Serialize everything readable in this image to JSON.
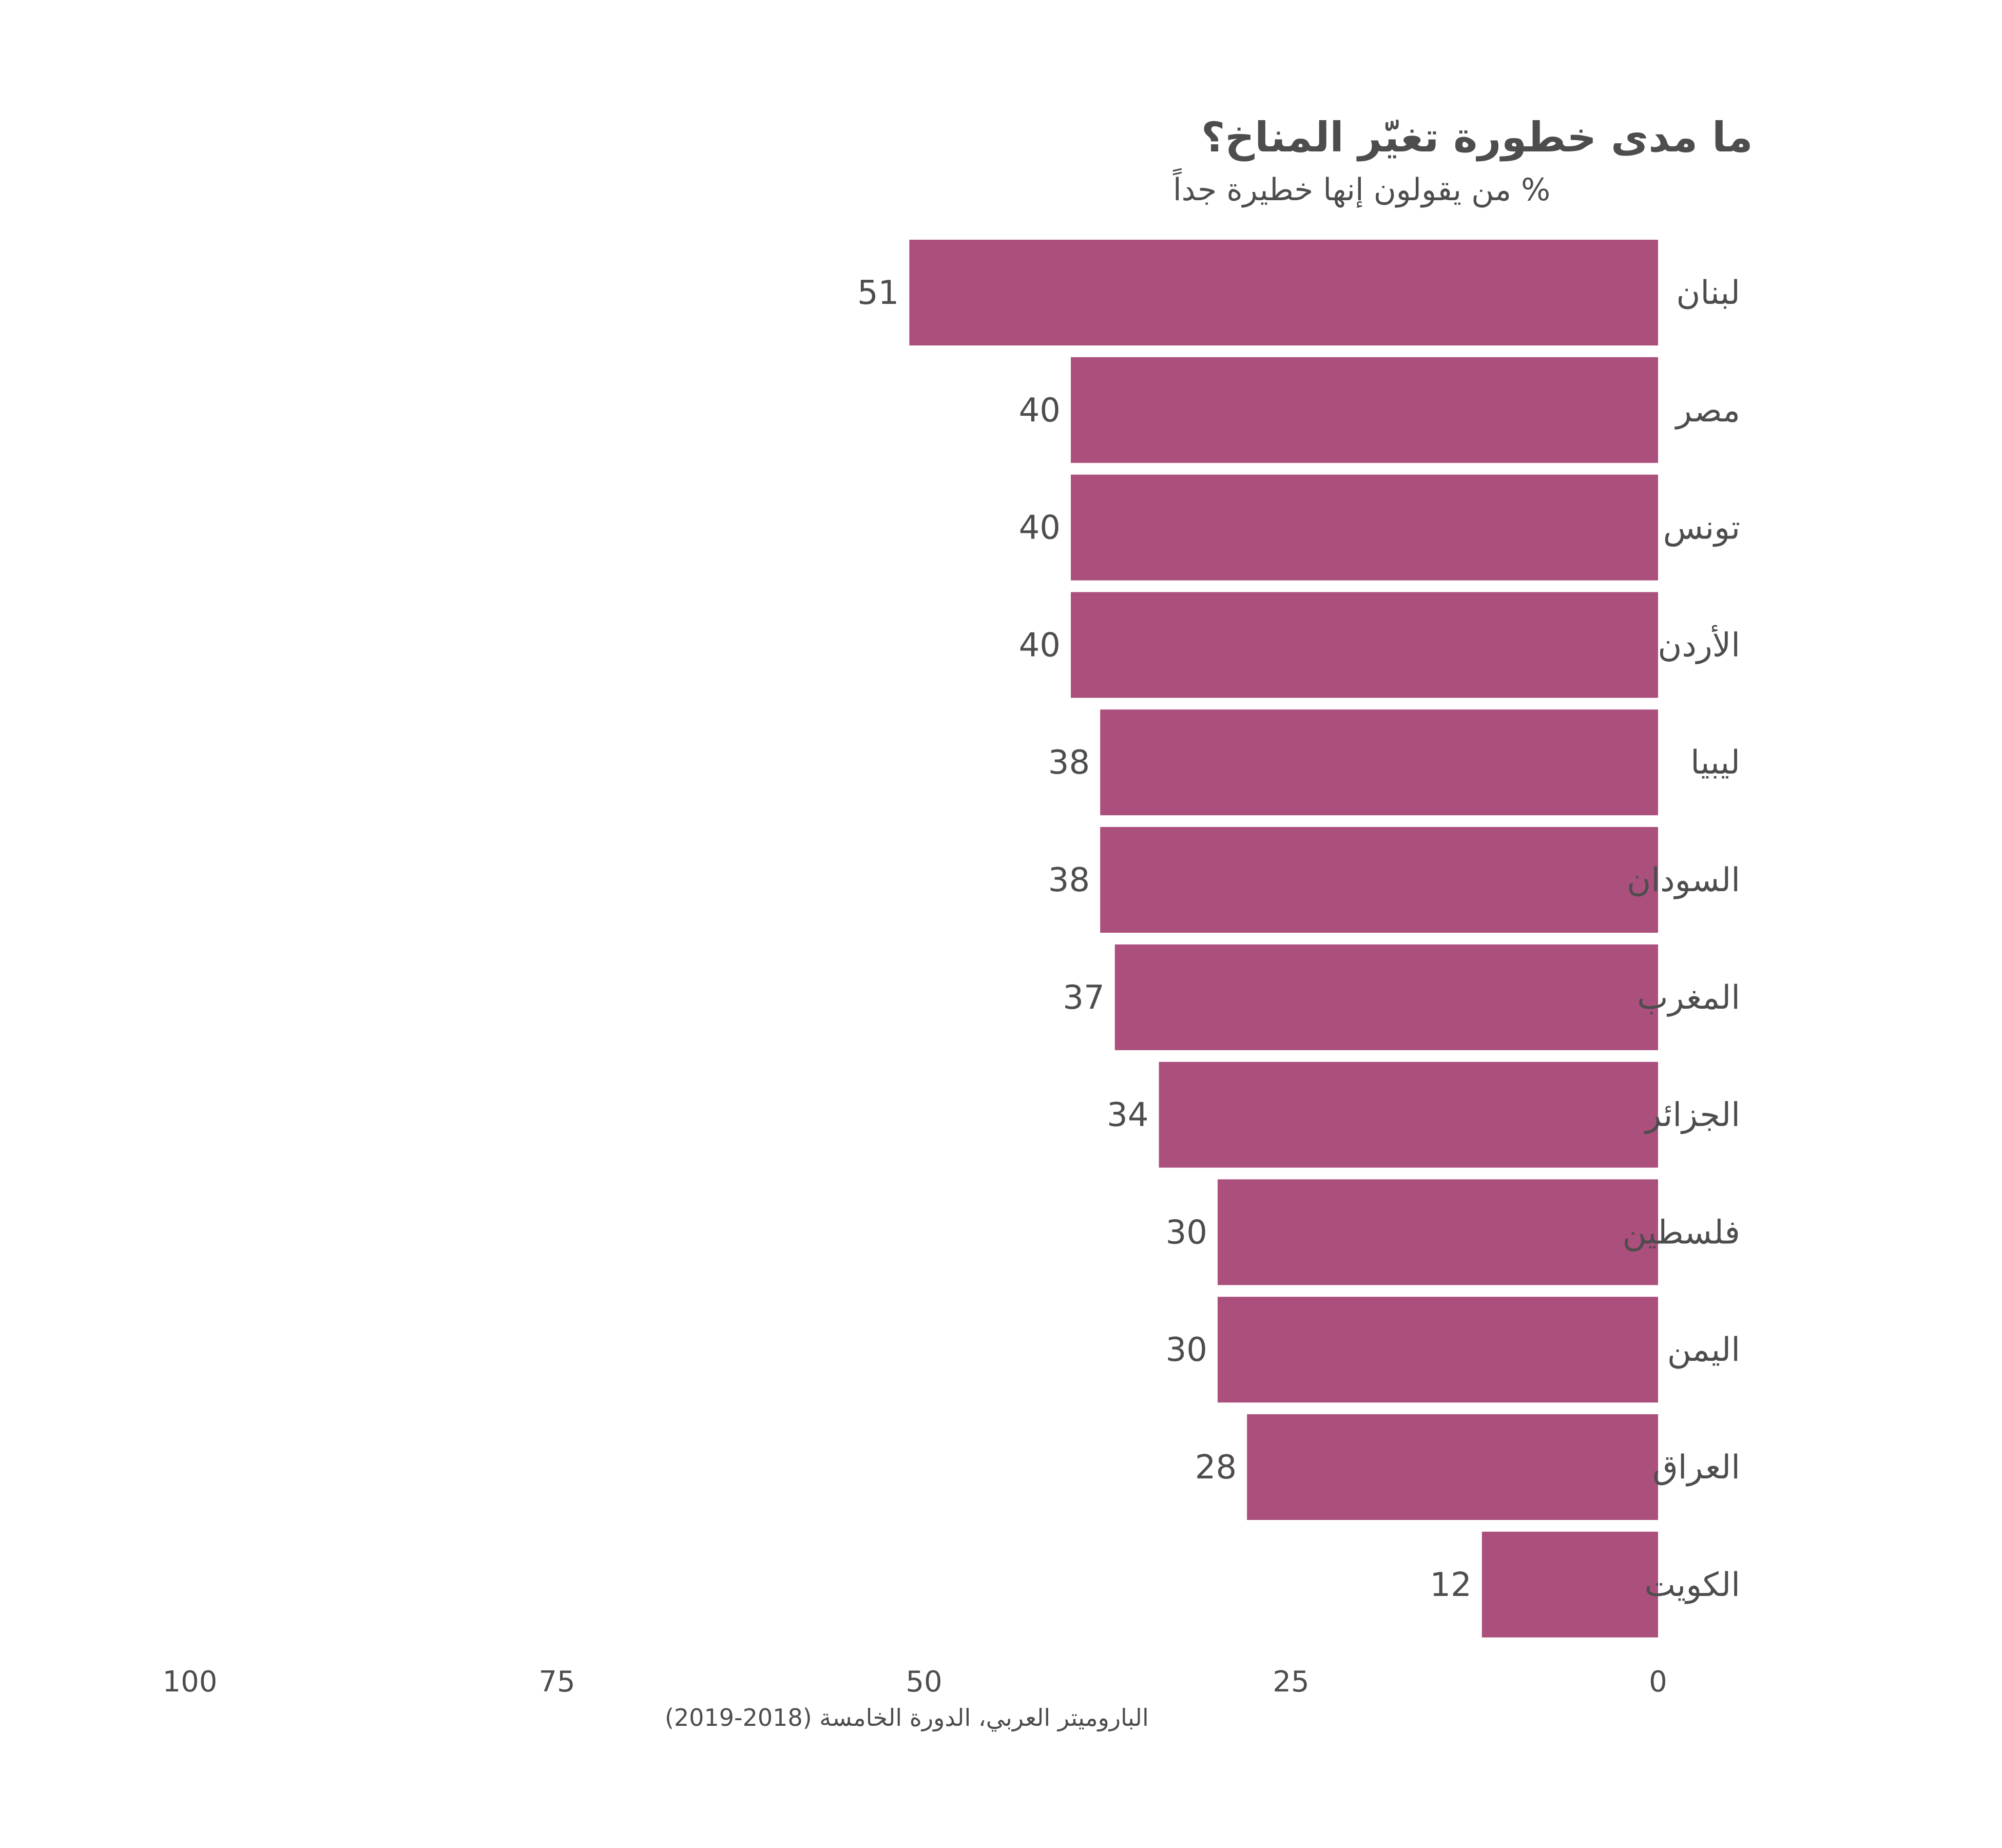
{
  "chart_data": {
    "type": "bar",
    "orientation": "horizontal",
    "direction": "right-to-left",
    "title": "ما مدى خطورة تغيّر المناخ؟",
    "subtitle": "% من يقولون إنها خطيرة جداً",
    "categories": [
      "لبنان",
      "مصر",
      "تونس",
      "الأردن",
      "ليبيا",
      "السودان",
      "المغرب",
      "الجزائر",
      "فلسطين",
      "اليمن",
      "العراق",
      "الكويت"
    ],
    "values": [
      51,
      40,
      40,
      40,
      38,
      38,
      37,
      34,
      30,
      30,
      28,
      12
    ],
    "xlim": [
      0,
      100
    ],
    "xticks": [
      100,
      75,
      50,
      25,
      0
    ],
    "grid": false,
    "bar_color": "#ab4f7c",
    "caption": "الباروميتر العربي، الدورة الخامسة (2018-2019)"
  }
}
